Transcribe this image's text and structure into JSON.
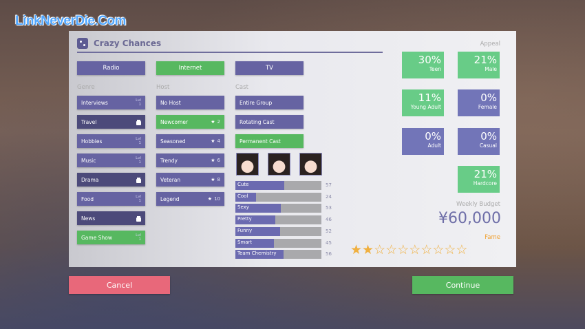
{
  "watermark": "LinkNeverDie.Com",
  "title": "Crazy Chances",
  "tabs": [
    {
      "label": "Radio",
      "state": "p"
    },
    {
      "label": "Internet",
      "state": "g"
    },
    {
      "label": "TV",
      "state": "p"
    }
  ],
  "sections": {
    "genre": "Genre",
    "host": "Host",
    "cast": "Cast"
  },
  "genres": [
    {
      "label": "Interviews",
      "state": "p",
      "lvl": "Lvl",
      "lvl_num": "1"
    },
    {
      "label": "Travel",
      "state": "d",
      "locked": true
    },
    {
      "label": "Hobbies",
      "state": "p",
      "lvl": "Lvl",
      "lvl_num": "1"
    },
    {
      "label": "Music",
      "state": "p",
      "lvl": "Lvl",
      "lvl_num": "1"
    },
    {
      "label": "Drama",
      "state": "d",
      "locked": true
    },
    {
      "label": "Food",
      "state": "p",
      "lvl": "Lvl",
      "lvl_num": "1"
    },
    {
      "label": "News",
      "state": "d",
      "locked": true
    },
    {
      "label": "Game Show",
      "state": "g",
      "lvl": "Lvl",
      "lvl_num": "1"
    }
  ],
  "hosts": [
    {
      "label": "No Host",
      "state": "p"
    },
    {
      "label": "Newcomer",
      "state": "g",
      "stars": "2"
    },
    {
      "label": "Seasoned",
      "state": "p",
      "stars": "4"
    },
    {
      "label": "Trendy",
      "state": "p",
      "stars": "6"
    },
    {
      "label": "Veteran",
      "state": "p",
      "stars": "8"
    },
    {
      "label": "Legend",
      "state": "p",
      "stars": "10"
    }
  ],
  "cast": [
    {
      "label": "Entire Group",
      "state": "p"
    },
    {
      "label": "Rotating Cast",
      "state": "p"
    },
    {
      "label": "Permanent Cast",
      "state": "g"
    }
  ],
  "stats": [
    {
      "label": "Cute",
      "value": 57
    },
    {
      "label": "Cool",
      "value": 24
    },
    {
      "label": "Sexy",
      "value": 53
    },
    {
      "label": "Pretty",
      "value": 46
    },
    {
      "label": "Funny",
      "value": 52
    },
    {
      "label": "Smart",
      "value": 45
    },
    {
      "label": "Team Chemistry",
      "value": 56
    }
  ],
  "stat_max": 100,
  "appeal": {
    "label": "Appeal",
    "items": [
      {
        "value": "30%",
        "label": "Teen",
        "state": "apg"
      },
      {
        "value": "21%",
        "label": "Male",
        "state": "apg"
      },
      {
        "value": "11%",
        "label": "Young Adult",
        "state": "apg"
      },
      {
        "value": "0%",
        "label": "Female",
        "state": "app"
      },
      {
        "value": "0%",
        "label": "Adult",
        "state": "app"
      },
      {
        "value": "0%",
        "label": "Casual",
        "state": "app"
      },
      {
        "value": "21%",
        "label": "Hardcore",
        "state": "apg"
      }
    ]
  },
  "budget": {
    "label": "Weekly Budget",
    "value": "¥60,000"
  },
  "fame": {
    "label": "Fame",
    "filled": 2,
    "total": 10
  },
  "buttons": {
    "cancel": "Cancel",
    "continue": "Continue"
  },
  "colors": {
    "purple": "#6663a2",
    "locked": "#4c4a7a",
    "green": "#57b860",
    "cancel": "#e8687a",
    "fame": "#f0b040"
  }
}
